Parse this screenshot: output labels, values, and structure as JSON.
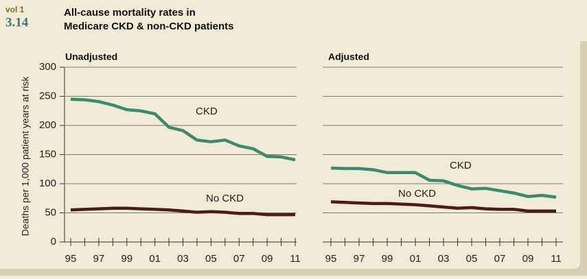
{
  "header": {
    "volume": "vol 1",
    "figure_number": "3.14",
    "title": [
      "All-cause mortality rates in",
      "Medicare CKD & non-CKD patients"
    ]
  },
  "chart_data": [
    {
      "type": "line",
      "title": "Unadjusted",
      "ylabel": "Deaths per 1,000 patient years at risk",
      "categories": [
        "95",
        null,
        "97",
        null,
        "99",
        null,
        "01",
        null,
        "03",
        null,
        "05",
        null,
        "07",
        null,
        "09",
        null,
        "11"
      ],
      "series": [
        {
          "name": "CKD",
          "color": "#3d8a6c",
          "values": [
            245,
            244,
            241,
            235,
            227,
            225,
            220,
            197,
            191,
            175,
            172,
            175,
            165,
            160,
            147,
            146,
            141
          ]
        },
        {
          "name": "No CKD",
          "color": "#4a1c16",
          "values": [
            55,
            56,
            57,
            58,
            58,
            57,
            56,
            55,
            53,
            51,
            52,
            51,
            49,
            49,
            47,
            47,
            47
          ]
        }
      ],
      "ylim": [
        0,
        300
      ],
      "yticks": [
        0,
        50,
        100,
        150,
        200,
        250,
        300
      ],
      "grid": true
    },
    {
      "type": "line",
      "title": "Adjusted",
      "categories": [
        "95",
        null,
        "97",
        null,
        "99",
        null,
        "01",
        null,
        "03",
        null,
        "05",
        null,
        "07",
        null,
        "09",
        null,
        "11"
      ],
      "series": [
        {
          "name": "CKD",
          "color": "#3d8a6c",
          "values": [
            127,
            126,
            126,
            124,
            119,
            119,
            119,
            106,
            105,
            97,
            91,
            92,
            88,
            84,
            78,
            80,
            77
          ]
        },
        {
          "name": "No CKD",
          "color": "#4a1c16",
          "values": [
            69,
            68,
            67,
            66,
            66,
            65,
            64,
            62,
            60,
            58,
            59,
            57,
            56,
            56,
            53,
            53,
            53
          ]
        }
      ],
      "ylim": [
        0,
        300
      ],
      "yticks": [
        0,
        50,
        100,
        150,
        200,
        250,
        300
      ],
      "grid": true
    }
  ]
}
